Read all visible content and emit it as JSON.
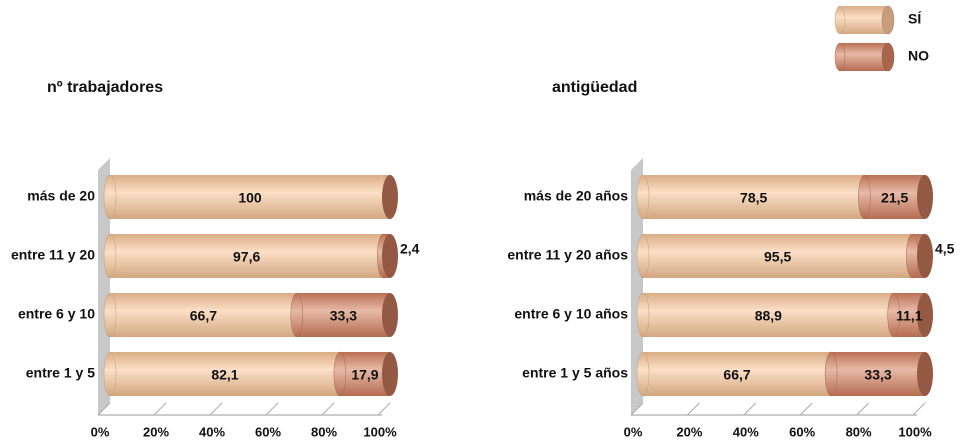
{
  "chart_data": [
    {
      "type": "bar",
      "title": "nº trabajadores",
      "categories": [
        "más de 20",
        "entre 11 y 20",
        "entre 6 y 10",
        "entre 1 y 5"
      ],
      "series": [
        {
          "name": "SÍ",
          "color": "#f7c597",
          "values": [
            100,
            97.6,
            66.7,
            82.1
          ],
          "value_labels": [
            "100",
            "97,6",
            "66,7",
            "82,1"
          ]
        },
        {
          "name": "NO",
          "color": "#d47f5f",
          "values": [
            0,
            2.4,
            33.3,
            17.9
          ],
          "value_labels": [
            null,
            "2,4",
            "33,3",
            "17,9"
          ]
        }
      ],
      "xlim": [
        0,
        100
      ],
      "xticks": [
        {
          "value": 0,
          "label": "0%"
        },
        {
          "value": 20,
          "label": "20%"
        },
        {
          "value": 40,
          "label": "40%"
        },
        {
          "value": 60,
          "label": "60%"
        },
        {
          "value": 80,
          "label": "80%"
        },
        {
          "value": 100,
          "label": "100%"
        }
      ],
      "stacked": true
    },
    {
      "type": "bar",
      "title": "antigüedad",
      "categories": [
        "más de 20 años",
        "entre 11 y 20 años",
        "entre 6 y 10 años",
        "entre 1 y 5 años"
      ],
      "series": [
        {
          "name": "SÍ",
          "color": "#f7c597",
          "values": [
            78.5,
            95.5,
            88.9,
            66.7
          ],
          "value_labels": [
            "78,5",
            "95,5",
            "88,9",
            "66,7"
          ]
        },
        {
          "name": "NO",
          "color": "#d47f5f",
          "values": [
            21.5,
            4.5,
            11.1,
            33.3
          ],
          "value_labels": [
            "21,5",
            "4,5",
            "11,1",
            "33,3"
          ]
        }
      ],
      "xlim": [
        0,
        100
      ],
      "xticks": [
        {
          "value": 0,
          "label": "0%"
        },
        {
          "value": 20,
          "label": "20%"
        },
        {
          "value": 40,
          "label": "40%"
        },
        {
          "value": 60,
          "label": "60%"
        },
        {
          "value": 80,
          "label": "80%"
        },
        {
          "value": 100,
          "label": "100%"
        }
      ],
      "stacked": true
    }
  ]
}
